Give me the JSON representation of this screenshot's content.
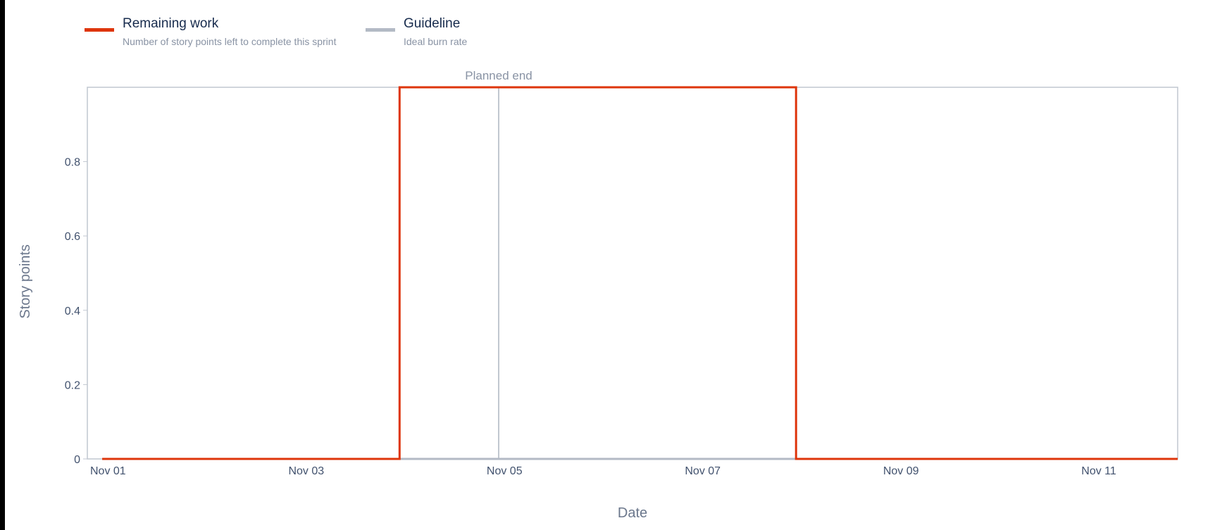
{
  "legend": {
    "items": [
      {
        "title": "Remaining work",
        "description": "Number of story points left to complete this sprint",
        "color": "#de350b"
      },
      {
        "title": "Guideline",
        "description": "Ideal burn rate",
        "color": "#b3bac5"
      }
    ]
  },
  "annotations": {
    "planned_end_label": "Planned end"
  },
  "chart_data": {
    "type": "line",
    "title": "",
    "xlabel": "Date",
    "ylabel": "Story points",
    "x_tick_labels": [
      "Nov 01",
      "Nov 03",
      "Nov 05",
      "Nov 07",
      "Nov 09",
      "Nov 11"
    ],
    "y_tick_labels": [
      "0",
      "0.2",
      "0.4",
      "0.6",
      "0.8"
    ],
    "xlim": [
      "2023-11-01",
      "2023-11-12"
    ],
    "ylim": [
      0,
      1
    ],
    "grid": false,
    "legend_position": "top-left",
    "series": [
      {
        "name": "Remaining work",
        "color": "#de350b",
        "step": true,
        "x": [
          "2023-11-01",
          "2023-11-04",
          "2023-11-04",
          "2023-11-08",
          "2023-11-08",
          "2023-11-12"
        ],
        "y": [
          0,
          0,
          1,
          1,
          0,
          0
        ]
      },
      {
        "name": "Guideline",
        "color": "#b3bac5",
        "x": [
          "2023-11-01",
          "2023-11-12"
        ],
        "y": [
          0,
          0
        ]
      }
    ],
    "planned_end": "2023-11-05"
  }
}
